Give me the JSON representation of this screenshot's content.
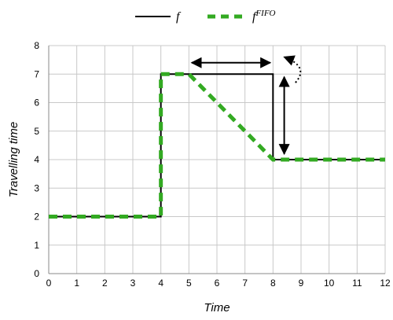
{
  "chart_data": {
    "type": "line",
    "xlabel": "Time",
    "ylabel": "Travelling time",
    "xlim": [
      0,
      12
    ],
    "ylim": [
      0,
      8
    ],
    "xticks": [
      "0",
      "1",
      "2",
      "3",
      "4",
      "5",
      "6",
      "7",
      "8",
      "9",
      "10",
      "11",
      "12"
    ],
    "yticks": [
      "0",
      "1",
      "2",
      "3",
      "4",
      "5",
      "6",
      "7",
      "8"
    ],
    "grid": true,
    "legend": {
      "placement": "top-center"
    },
    "series": [
      {
        "name": "f",
        "style": "solid",
        "color": "#000000",
        "points": [
          [
            0,
            2
          ],
          [
            4,
            2
          ],
          [
            4,
            7
          ],
          [
            8,
            7
          ],
          [
            8,
            4
          ],
          [
            12,
            4
          ]
        ]
      },
      {
        "name": "f",
        "name_sup": "FIFO",
        "style": "dashed",
        "color": "#33aa22",
        "points": [
          [
            0,
            2
          ],
          [
            4,
            2
          ],
          [
            4,
            7
          ],
          [
            5,
            7
          ],
          [
            8,
            4
          ],
          [
            12,
            4
          ]
        ]
      }
    ],
    "annotations": [
      {
        "kind": "double-arrow",
        "from": [
          5.1,
          7.4
        ],
        "to": [
          7.9,
          7.4
        ]
      },
      {
        "kind": "double-arrow",
        "from": [
          8.4,
          6.9
        ],
        "to": [
          8.4,
          4.2
        ]
      },
      {
        "kind": "dotted-curve-arrow",
        "from": [
          8.8,
          6.7
        ],
        "to": [
          8.4,
          7.6
        ]
      }
    ]
  }
}
